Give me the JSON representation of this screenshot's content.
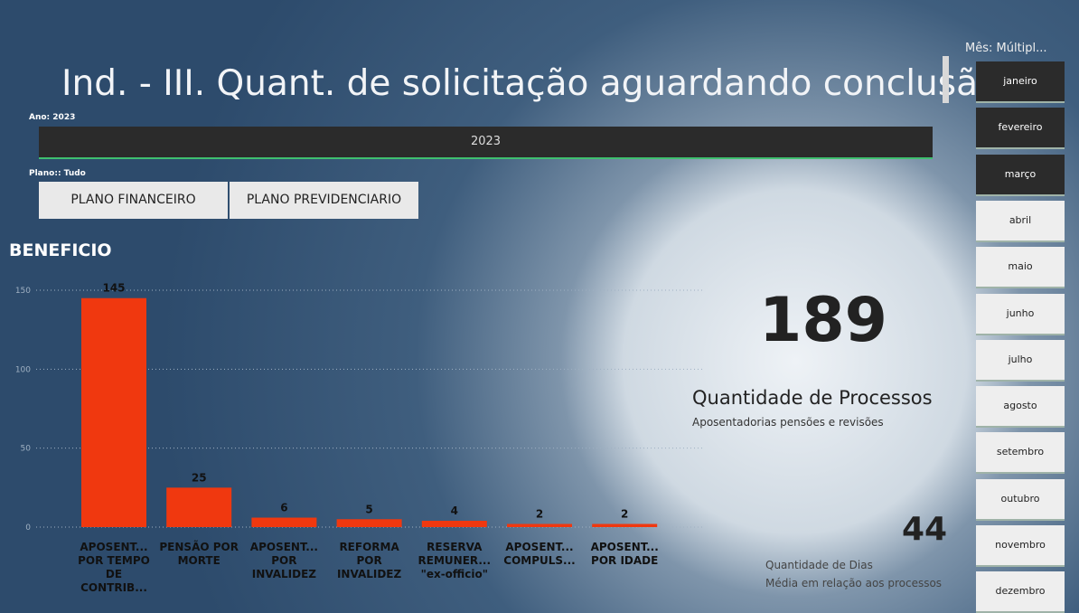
{
  "title": "Ind. - III. Quant. de solicitação aguardando conclusão",
  "year_filter": {
    "label": "Ano: 2023",
    "value": "2023"
  },
  "plan_filter": {
    "label": "Plano:: Tudo",
    "options": [
      "PLANO FINANCEIRO",
      "PLANO PREVIDENCIARIO"
    ]
  },
  "chart_data": {
    "type": "bar",
    "title": "BENEFICIO",
    "categories": [
      "APOSENT... POR TEMPO DE CONTRIB...",
      "PENSÃO POR MORTE",
      "APOSENT... POR INVALIDEZ",
      "REFORMA POR INVALIDEZ",
      "RESERVA REMUNER... \"ex-officio\"",
      "APOSENT... COMPULS...",
      "APOSENT... POR IDADE"
    ],
    "values": [
      145,
      25,
      6,
      5,
      4,
      2,
      2
    ],
    "color": "#f0380f",
    "ylim": [
      0,
      150
    ],
    "yticks": [
      0,
      50,
      100,
      150
    ],
    "grid": true
  },
  "kpi_processes": {
    "value": "189",
    "label": "Quantidade de Processos",
    "sublabel": "Aposentadorias pensões e revisões"
  },
  "kpi_days": {
    "value": "44",
    "label": "Quantidade de Dias",
    "sublabel": "Média em relação aos processos"
  },
  "month_slicer": {
    "title": "Mês: Múltipl...",
    "months": [
      "janeiro",
      "fevereiro",
      "março",
      "abril",
      "maio",
      "junho",
      "julho",
      "agosto",
      "setembro",
      "outubro",
      "novembro",
      "dezembro"
    ],
    "selected": [
      true,
      true,
      true,
      false,
      false,
      false,
      false,
      false,
      false,
      false,
      false,
      false
    ]
  }
}
